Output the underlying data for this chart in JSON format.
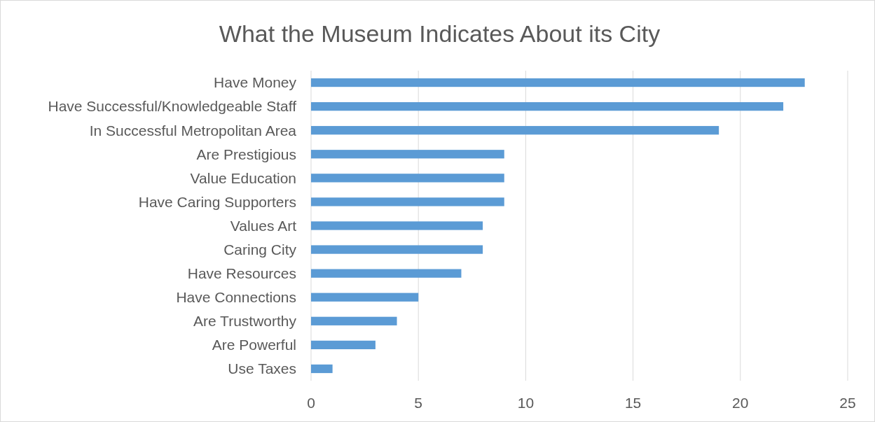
{
  "chart_data": {
    "type": "bar",
    "orientation": "horizontal",
    "title": "What the Museum Indicates About its City",
    "categories": [
      "Have Money",
      "Have Successful/Knowledgeable Staff",
      "In Successful Metropolitan Area",
      "Are Prestigious",
      "Value Education",
      "Have Caring Supporters",
      "Values Art",
      "Caring City",
      "Have Resources",
      "Have Connections",
      "Are Trustworthy",
      "Are Powerful",
      "Use Taxes"
    ],
    "values": [
      23,
      22,
      19,
      9,
      9,
      9,
      8,
      8,
      7,
      5,
      4,
      3,
      1
    ],
    "color": "#5b9bd5",
    "xlim": [
      0,
      25
    ],
    "xticks": [
      0,
      5,
      10,
      15,
      20,
      25
    ],
    "grid": "x"
  }
}
